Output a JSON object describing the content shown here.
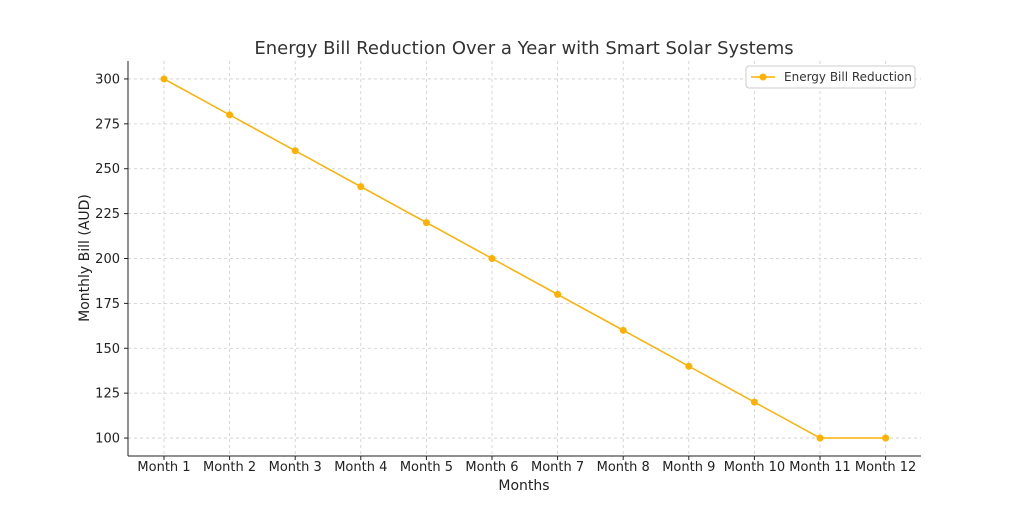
{
  "chart_data": {
    "type": "line",
    "title": "Energy Bill Reduction Over a Year with Smart Solar Systems",
    "xlabel": "Months",
    "ylabel": "Monthly Bill (AUD)",
    "categories": [
      "Month 1",
      "Month 2",
      "Month 3",
      "Month 4",
      "Month 5",
      "Month 6",
      "Month 7",
      "Month 8",
      "Month 9",
      "Month 10",
      "Month 11",
      "Month 12"
    ],
    "series": [
      {
        "name": "Energy Bill Reduction",
        "values": [
          300,
          280,
          260,
          240,
          220,
          200,
          180,
          160,
          140,
          120,
          100,
          100
        ],
        "color": "#FFB000",
        "marker": "circle"
      }
    ],
    "yticks": [
      100,
      125,
      150,
      175,
      200,
      225,
      250,
      275,
      300
    ],
    "ylim": [
      90,
      310
    ],
    "grid": true,
    "legend_position": "top-right"
  }
}
